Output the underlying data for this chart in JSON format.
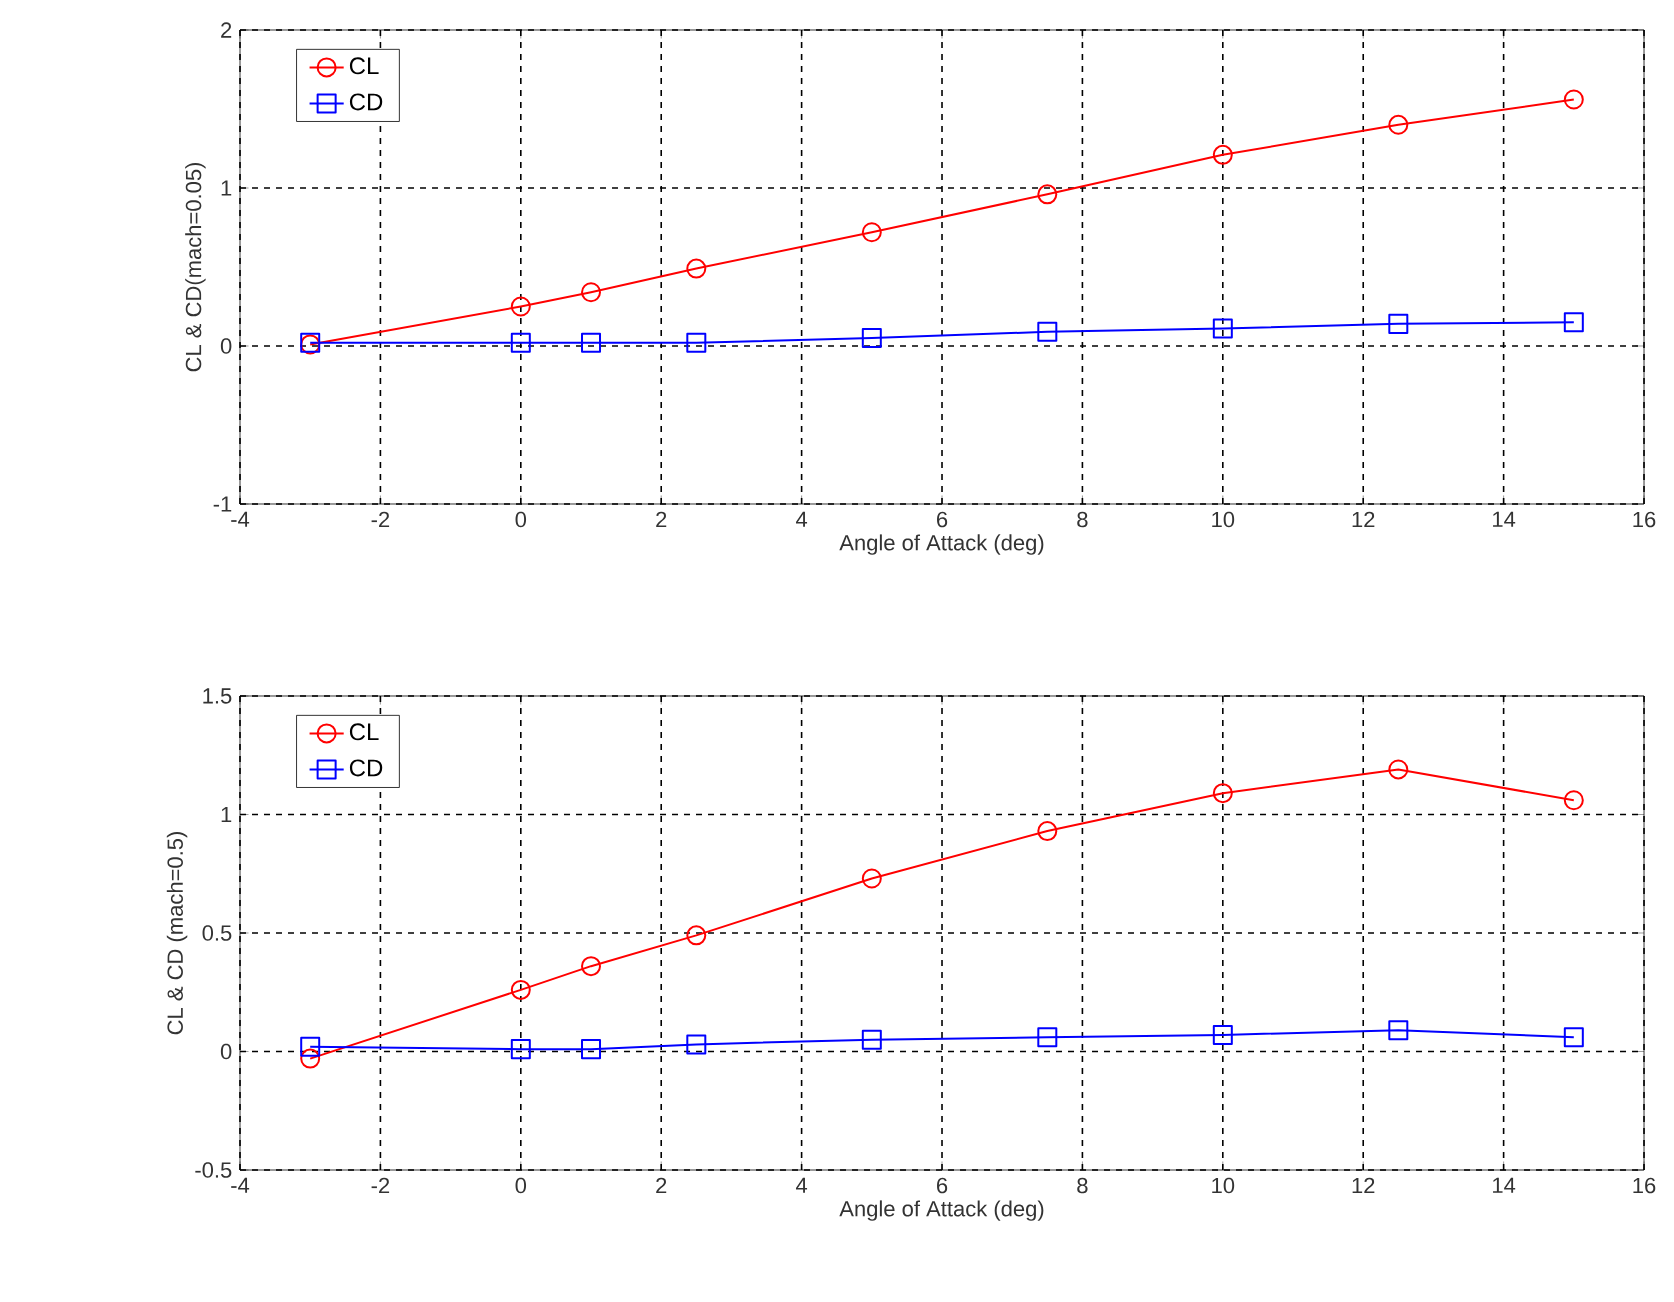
{
  "chart_data": [
    {
      "type": "line",
      "xlabel": "Angle of Attack (deg)",
      "ylabel": "CL & CD(mach=0.05)",
      "x": [
        -3,
        0,
        1,
        2.5,
        5,
        7.5,
        10,
        12.5,
        15
      ],
      "series": [
        {
          "name": "CL",
          "color": "#ff0000",
          "marker": "circle",
          "values": [
            0.01,
            0.25,
            0.34,
            0.49,
            0.72,
            0.96,
            1.21,
            1.4,
            1.56
          ]
        },
        {
          "name": "CD",
          "color": "#0000ff",
          "marker": "square",
          "values": [
            0.02,
            0.02,
            0.02,
            0.02,
            0.05,
            0.09,
            0.11,
            0.14,
            0.15
          ]
        }
      ],
      "xlim": [
        -4,
        16
      ],
      "xticks": [
        -4,
        -2,
        0,
        2,
        4,
        6,
        8,
        10,
        12,
        14,
        16
      ],
      "ylim": [
        -1,
        2
      ],
      "yticks": [
        -1,
        0,
        1,
        2
      ],
      "grid": true,
      "legend": "top left",
      "line_style": "solid"
    },
    {
      "type": "line",
      "xlabel": "Angle of Attack (deg)",
      "ylabel": "CL & CD (mach=0.5)",
      "x": [
        -3,
        0,
        1,
        2.5,
        5,
        7.5,
        10,
        12.5,
        15
      ],
      "series": [
        {
          "name": "CL",
          "color": "#ff0000",
          "marker": "circle",
          "values": [
            -0.03,
            0.26,
            0.36,
            0.49,
            0.73,
            0.93,
            1.09,
            1.19,
            1.06
          ]
        },
        {
          "name": "CD",
          "color": "#0000ff",
          "marker": "square",
          "values": [
            0.02,
            0.01,
            0.01,
            0.03,
            0.05,
            0.06,
            0.07,
            0.09,
            0.06
          ]
        }
      ],
      "xlim": [
        -4,
        16
      ],
      "xticks": [
        -4,
        -2,
        0,
        2,
        4,
        6,
        8,
        10,
        12,
        14,
        16
      ],
      "ylim": [
        -0.5,
        1.5
      ],
      "yticks": [
        -0.5,
        0,
        0.5,
        1,
        1.5
      ],
      "grid": true,
      "legend": "top left",
      "line_style": "solid"
    }
  ]
}
